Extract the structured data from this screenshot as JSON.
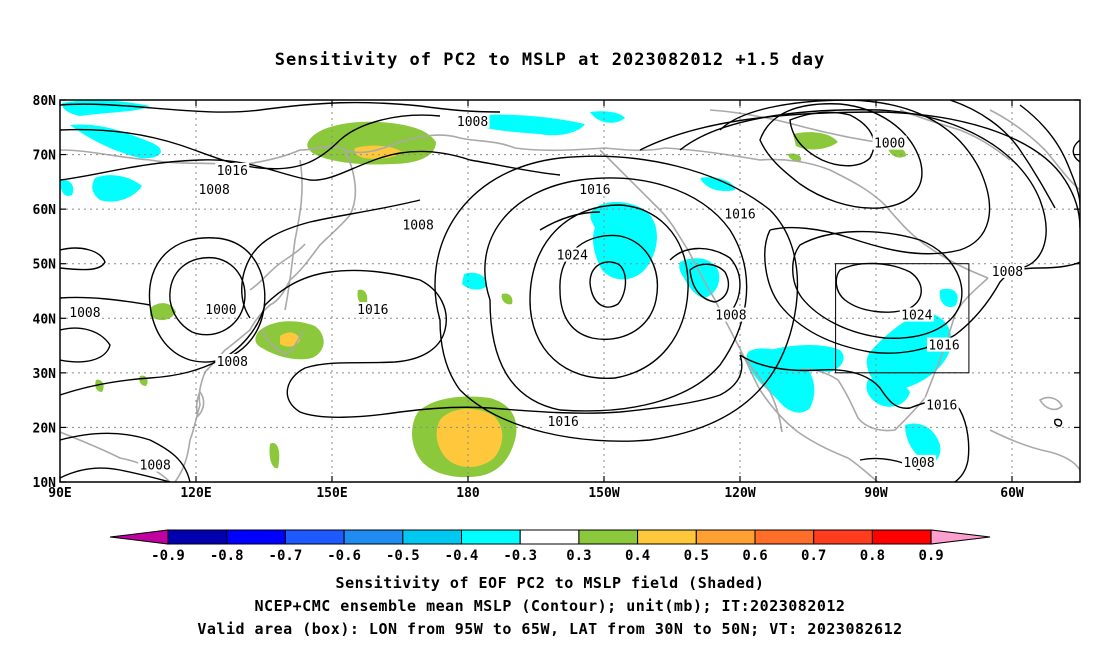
{
  "title": "Sensitivity of PC2 to MSLP at 2023082012 +1.5 day",
  "map": {
    "lon_ticks": [
      {
        "lon": 90,
        "label": "90E"
      },
      {
        "lon": 120,
        "label": "120E"
      },
      {
        "lon": 150,
        "label": "150E"
      },
      {
        "lon": 180,
        "label": "180"
      },
      {
        "lon": 210,
        "label": "150W"
      },
      {
        "lon": 240,
        "label": "120W"
      },
      {
        "lon": 270,
        "label": "90W"
      },
      {
        "lon": 300,
        "label": "60W"
      }
    ],
    "lat_ticks": [
      {
        "lat": 80,
        "label": "80N"
      },
      {
        "lat": 70,
        "label": "70N"
      },
      {
        "lat": 60,
        "label": "60N"
      },
      {
        "lat": 50,
        "label": "50N"
      },
      {
        "lat": 40,
        "label": "40N"
      },
      {
        "lat": 30,
        "label": "30N"
      },
      {
        "lat": 20,
        "label": "20N"
      },
      {
        "lat": 10,
        "label": "10N"
      }
    ],
    "lon_range": [
      90,
      315
    ],
    "lat_range": [
      10,
      80
    ],
    "grid": "dotted",
    "valid_box": {
      "lon": [
        265,
        295
      ],
      "lat": [
        30,
        50
      ]
    },
    "contour_labels": [
      {
        "text": "1008",
        "lon": 181,
        "lat": 76
      },
      {
        "text": "1016",
        "lon": 128,
        "lat": 67
      },
      {
        "text": "1008",
        "lon": 124,
        "lat": 63.5
      },
      {
        "text": "1008",
        "lon": 169,
        "lat": 57
      },
      {
        "text": "1016",
        "lon": 208,
        "lat": 63.5
      },
      {
        "text": "1016",
        "lon": 240,
        "lat": 59
      },
      {
        "text": "1000",
        "lon": 273,
        "lat": 72
      },
      {
        "text": "1024",
        "lon": 203,
        "lat": 51.5
      },
      {
        "text": "1008",
        "lon": 95.5,
        "lat": 41
      },
      {
        "text": "1000",
        "lon": 125.5,
        "lat": 41.5
      },
      {
        "text": "1016",
        "lon": 159,
        "lat": 41.5
      },
      {
        "text": "1008",
        "lon": 238,
        "lat": 40.5
      },
      {
        "text": "1024",
        "lon": 279,
        "lat": 40.5
      },
      {
        "text": "1008",
        "lon": 299,
        "lat": 48.5
      },
      {
        "text": "1016",
        "lon": 285,
        "lat": 35
      },
      {
        "text": "1008",
        "lon": 128,
        "lat": 32
      },
      {
        "text": "1016",
        "lon": 284.5,
        "lat": 24
      },
      {
        "text": "1016",
        "lon": 201,
        "lat": 21
      },
      {
        "text": "1008",
        "lon": 111,
        "lat": 13
      },
      {
        "text": "1008",
        "lon": 279.5,
        "lat": 13.5
      }
    ]
  },
  "colorbar": {
    "labels": [
      "-0.9",
      "-0.8",
      "-0.7",
      "-0.6",
      "-0.5",
      "-0.4",
      "-0.3",
      "0.3",
      "0.4",
      "0.5",
      "0.6",
      "0.7",
      "0.8",
      "0.9"
    ],
    "colors": {
      "low_arrow": "#c000a0",
      "neg": [
        "#0000b0",
        "#0000ff",
        "#1e5aff",
        "#1e8cf0",
        "#00c8f0",
        "#00ffff"
      ],
      "zero": "#ffffff",
      "pos": [
        "#8cc83c",
        "#ffc83c",
        "#ffa032",
        "#ff6e28",
        "#ff3c1e",
        "#ff0000"
      ],
      "high_arrow": "#ff9fd0"
    }
  },
  "captions": {
    "line1": "Sensitivity of EOF PC2 to MSLP field (Shaded)",
    "line2": "NCEP+CMC ensemble mean MSLP (Contour); unit(mb); IT:2023082012",
    "line3": "Valid area (box): LON from 95W to 65W, LAT from 30N to 50N; VT: 2023082612"
  }
}
